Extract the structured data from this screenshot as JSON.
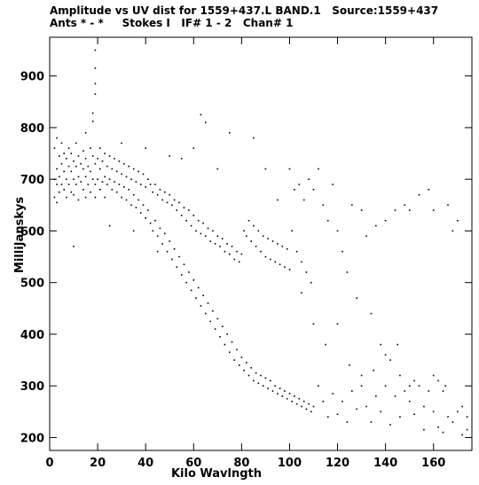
{
  "chart_data": {
    "type": "scatter",
    "title": "Amplitude vs UV dist for 1559+437.L BAND.1   Source:1559+437",
    "subtitle": "Ants * - *     Stokes I   IF# 1 - 2   Chan# 1",
    "xlabel": "Kilo Wavlngth",
    "ylabel": "MilliJanskys",
    "xlim": [
      0,
      176
    ],
    "ylim": [
      175,
      975
    ],
    "x_ticks": [
      0,
      20,
      40,
      60,
      80,
      100,
      120,
      140,
      160
    ],
    "y_ticks": [
      200,
      300,
      400,
      500,
      600,
      700,
      800,
      900
    ],
    "grid": false,
    "legend": "none",
    "marker_color": "#000000",
    "series": [
      {
        "points": [
          [
            2,
            760
          ],
          [
            2,
            700
          ],
          [
            2,
            665
          ],
          [
            3,
            780
          ],
          [
            3,
            720
          ],
          [
            3,
            690
          ],
          [
            3,
            655
          ],
          [
            4,
            745
          ],
          [
            4,
            705
          ],
          [
            4,
            675
          ],
          [
            5,
            770
          ],
          [
            5,
            730
          ],
          [
            5,
            690
          ],
          [
            6,
            750
          ],
          [
            6,
            715
          ],
          [
            6,
            680
          ],
          [
            7,
            740
          ],
          [
            7,
            700
          ],
          [
            7,
            665
          ],
          [
            8,
            760
          ],
          [
            8,
            725
          ],
          [
            8,
            690
          ],
          [
            9,
            750
          ],
          [
            9,
            715
          ],
          [
            9,
            675
          ],
          [
            10,
            735
          ],
          [
            10,
            700
          ],
          [
            10,
            670
          ],
          [
            11,
            770
          ],
          [
            11,
            725
          ],
          [
            11,
            690
          ],
          [
            12,
            745
          ],
          [
            12,
            705
          ],
          [
            12,
            660
          ],
          [
            13,
            730
          ],
          [
            13,
            695
          ],
          [
            14,
            755
          ],
          [
            14,
            720
          ],
          [
            14,
            680
          ],
          [
            15,
            740
          ],
          [
            15,
            705
          ],
          [
            15,
            665
          ],
          [
            16,
            725
          ],
          [
            16,
            690
          ],
          [
            17,
            760
          ],
          [
            17,
            715
          ],
          [
            17,
            675
          ],
          [
            18,
            745
          ],
          [
            18,
            700
          ],
          [
            19,
            730
          ],
          [
            19,
            690
          ],
          [
            19,
            665
          ],
          [
            19,
            950
          ],
          [
            19,
            915
          ],
          [
            19,
            885
          ],
          [
            19,
            865
          ],
          [
            18,
            828
          ],
          [
            18,
            812
          ],
          [
            20,
            740
          ],
          [
            20,
            700
          ],
          [
            21,
            760
          ],
          [
            21,
            720
          ],
          [
            21,
            680
          ],
          [
            22,
            735
          ],
          [
            22,
            695
          ],
          [
            23,
            750
          ],
          [
            23,
            705
          ],
          [
            23,
            665
          ],
          [
            24,
            725
          ],
          [
            24,
            690
          ],
          [
            25,
            745
          ],
          [
            25,
            700
          ],
          [
            26,
            720
          ],
          [
            26,
            680
          ],
          [
            27,
            740
          ],
          [
            27,
            695
          ],
          [
            28,
            715
          ],
          [
            28,
            675
          ],
          [
            29,
            735
          ],
          [
            29,
            690
          ],
          [
            30,
            710
          ],
          [
            30,
            665
          ],
          [
            31,
            730
          ],
          [
            31,
            685
          ],
          [
            32,
            705
          ],
          [
            32,
            660
          ],
          [
            33,
            725
          ],
          [
            33,
            680
          ],
          [
            34,
            700
          ],
          [
            34,
            650
          ],
          [
            35,
            720
          ],
          [
            35,
            670
          ],
          [
            36,
            695
          ],
          [
            36,
            645
          ],
          [
            37,
            715
          ],
          [
            37,
            660
          ],
          [
            38,
            690
          ],
          [
            38,
            635
          ],
          [
            39,
            710
          ],
          [
            39,
            650
          ],
          [
            40,
            685
          ],
          [
            40,
            625
          ],
          [
            41,
            700
          ],
          [
            41,
            640
          ],
          [
            42,
            690
          ],
          [
            42,
            615
          ],
          [
            43,
            675
          ],
          [
            43,
            600
          ],
          [
            44,
            690
          ],
          [
            44,
            620
          ],
          [
            45,
            670
          ],
          [
            45,
            590
          ],
          [
            46,
            680
          ],
          [
            46,
            605
          ],
          [
            47,
            660
          ],
          [
            47,
            575
          ],
          [
            48,
            675
          ],
          [
            48,
            595
          ],
          [
            49,
            655
          ],
          [
            49,
            560
          ],
          [
            50,
            670
          ],
          [
            50,
            580
          ],
          [
            51,
            650
          ],
          [
            51,
            545
          ],
          [
            52,
            660
          ],
          [
            52,
            565
          ],
          [
            53,
            640
          ],
          [
            53,
            530
          ],
          [
            54,
            655
          ],
          [
            54,
            550
          ],
          [
            55,
            630
          ],
          [
            55,
            515
          ],
          [
            56,
            645
          ],
          [
            56,
            535
          ],
          [
            57,
            620
          ],
          [
            57,
            500
          ],
          [
            58,
            640
          ],
          [
            58,
            520
          ],
          [
            59,
            610
          ],
          [
            59,
            485
          ],
          [
            60,
            630
          ],
          [
            60,
            505
          ],
          [
            61,
            600
          ],
          [
            61,
            470
          ],
          [
            62,
            620
          ],
          [
            62,
            490
          ],
          [
            63,
            595
          ],
          [
            63,
            455
          ],
          [
            64,
            615
          ],
          [
            64,
            475
          ],
          [
            65,
            590
          ],
          [
            65,
            440
          ],
          [
            66,
            605
          ],
          [
            66,
            460
          ],
          [
            67,
            580
          ],
          [
            67,
            425
          ],
          [
            68,
            600
          ],
          [
            68,
            445
          ],
          [
            69,
            575
          ],
          [
            69,
            410
          ],
          [
            70,
            590
          ],
          [
            70,
            430
          ],
          [
            71,
            570
          ],
          [
            71,
            395
          ],
          [
            72,
            585
          ],
          [
            72,
            415
          ],
          [
            73,
            560
          ],
          [
            73,
            380
          ],
          [
            74,
            575
          ],
          [
            74,
            400
          ],
          [
            75,
            555
          ],
          [
            75,
            365
          ],
          [
            76,
            570
          ],
          [
            76,
            385
          ],
          [
            77,
            545
          ],
          [
            77,
            350
          ],
          [
            78,
            560
          ],
          [
            78,
            370
          ],
          [
            79,
            540
          ],
          [
            79,
            340
          ],
          [
            80,
            555
          ],
          [
            80,
            355
          ],
          [
            81,
            600
          ],
          [
            81,
            330
          ],
          [
            82,
            590
          ],
          [
            82,
            345
          ],
          [
            83,
            620
          ],
          [
            83,
            320
          ],
          [
            84,
            580
          ],
          [
            84,
            335
          ],
          [
            85,
            610
          ],
          [
            85,
            310
          ],
          [
            86,
            570
          ],
          [
            86,
            325
          ],
          [
            87,
            600
          ],
          [
            87,
            305
          ],
          [
            88,
            560
          ],
          [
            88,
            320
          ],
          [
            89,
            590
          ],
          [
            89,
            300
          ],
          [
            90,
            550
          ],
          [
            90,
            315
          ],
          [
            91,
            585
          ],
          [
            91,
            295
          ],
          [
            92,
            545
          ],
          [
            92,
            310
          ],
          [
            93,
            580
          ],
          [
            93,
            290
          ],
          [
            94,
            540
          ],
          [
            94,
            300
          ],
          [
            95,
            575
          ],
          [
            95,
            285
          ],
          [
            96,
            535
          ],
          [
            96,
            295
          ],
          [
            97,
            570
          ],
          [
            97,
            280
          ],
          [
            98,
            530
          ],
          [
            98,
            290
          ],
          [
            99,
            565
          ],
          [
            99,
            275
          ],
          [
            100,
            525
          ],
          [
            100,
            285
          ],
          [
            101,
            600
          ],
          [
            101,
            270
          ],
          [
            102,
            680
          ],
          [
            102,
            280
          ],
          [
            103,
            560
          ],
          [
            103,
            265
          ],
          [
            104,
            690
          ],
          [
            104,
            275
          ],
          [
            105,
            540
          ],
          [
            105,
            260
          ],
          [
            106,
            660
          ],
          [
            106,
            270
          ],
          [
            107,
            520
          ],
          [
            107,
            255
          ],
          [
            108,
            700
          ],
          [
            108,
            265
          ],
          [
            109,
            500
          ],
          [
            109,
            250
          ],
          [
            110,
            680
          ],
          [
            110,
            260
          ],
          [
            112,
            720
          ],
          [
            112,
            300
          ],
          [
            114,
            650
          ],
          [
            114,
            270
          ],
          [
            116,
            620
          ],
          [
            116,
            240
          ],
          [
            118,
            690
          ],
          [
            118,
            285
          ],
          [
            120,
            600
          ],
          [
            120,
            245
          ],
          [
            122,
            560
          ],
          [
            122,
            270
          ],
          [
            124,
            520
          ],
          [
            124,
            230
          ],
          [
            126,
            650
          ],
          [
            126,
            290
          ],
          [
            128,
            470
          ],
          [
            128,
            255
          ],
          [
            130,
            640
          ],
          [
            130,
            300
          ],
          [
            132,
            590
          ],
          [
            132,
            260
          ],
          [
            134,
            440
          ],
          [
            134,
            230
          ],
          [
            136,
            610
          ],
          [
            136,
            280
          ],
          [
            138,
            380
          ],
          [
            138,
            250
          ],
          [
            140,
            620
          ],
          [
            140,
            300
          ],
          [
            142,
            350
          ],
          [
            142,
            225
          ],
          [
            144,
            640
          ],
          [
            144,
            280
          ],
          [
            146,
            320
          ],
          [
            146,
            240
          ],
          [
            148,
            650
          ],
          [
            148,
            290
          ],
          [
            150,
            640
          ],
          [
            150,
            270
          ],
          [
            152,
            310
          ],
          [
            152,
            245
          ],
          [
            154,
            670
          ],
          [
            154,
            300
          ],
          [
            156,
            260
          ],
          [
            156,
            215
          ],
          [
            158,
            680
          ],
          [
            158,
            290
          ],
          [
            160,
            640
          ],
          [
            160,
            250
          ],
          [
            162,
            310
          ],
          [
            162,
            220
          ],
          [
            164,
            290
          ],
          [
            164,
            210
          ],
          [
            166,
            650
          ],
          [
            166,
            240
          ],
          [
            168,
            600
          ],
          [
            168,
            230
          ],
          [
            170,
            620
          ],
          [
            170,
            250
          ],
          [
            172,
            260
          ],
          [
            172,
            205
          ],
          [
            174,
            240
          ],
          [
            174,
            215
          ],
          [
            10,
            570
          ],
          [
            15,
            790
          ],
          [
            25,
            610
          ],
          [
            30,
            770
          ],
          [
            35,
            600
          ],
          [
            40,
            760
          ],
          [
            45,
            560
          ],
          [
            50,
            745
          ],
          [
            55,
            740
          ],
          [
            60,
            760
          ],
          [
            63,
            825
          ],
          [
            65,
            810
          ],
          [
            70,
            720
          ],
          [
            75,
            790
          ],
          [
            85,
            780
          ],
          [
            90,
            720
          ],
          [
            95,
            660
          ],
          [
            100,
            720
          ],
          [
            105,
            480
          ],
          [
            110,
            420
          ],
          [
            115,
            380
          ],
          [
            120,
            420
          ],
          [
            125,
            340
          ],
          [
            130,
            320
          ],
          [
            135,
            330
          ],
          [
            140,
            360
          ],
          [
            145,
            380
          ],
          [
            150,
            300
          ],
          [
            160,
            320
          ],
          [
            165,
            300
          ]
        ]
      }
    ]
  }
}
